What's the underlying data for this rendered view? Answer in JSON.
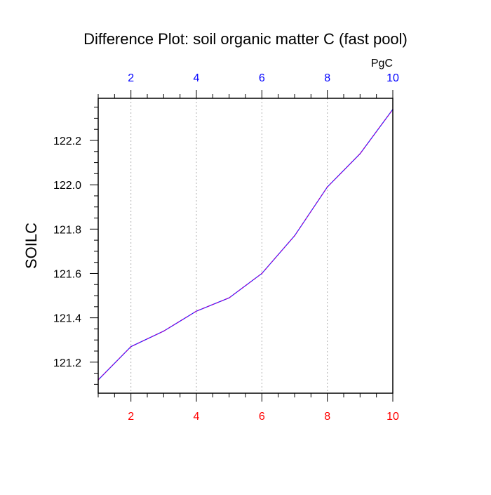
{
  "chart_data": {
    "type": "line",
    "title": "Difference Plot: soil organic matter C (fast pool)",
    "ylabel": "SOILC",
    "top_axis_unit": "PgC",
    "x": [
      1,
      2,
      3,
      4,
      5,
      6,
      7,
      8,
      9,
      10
    ],
    "series": [
      {
        "values": [
          121.12,
          121.27,
          121.34,
          121.43,
          121.49,
          121.6,
          121.77,
          121.99,
          122.14,
          122.34
        ],
        "color": "#a000c8",
        "dash_color": "#2020ff",
        "style": "dashed"
      }
    ],
    "xlim": [
      1,
      10
    ],
    "ylim": [
      121.06,
      122.39
    ],
    "x_ticks": [
      2,
      4,
      6,
      8,
      10
    ],
    "x_tick_labels": [
      "2",
      "4",
      "6",
      "8",
      "10"
    ],
    "y_ticks": [
      121.2,
      121.4,
      121.6,
      121.8,
      122.0,
      122.2
    ],
    "y_tick_labels": [
      "121.2",
      "121.4",
      "121.6",
      "121.8",
      "122.0",
      "122.2"
    ],
    "bottom_axis_color": "#ff0000",
    "top_axis_color": "#0000ff",
    "grid": "vertical-dotted",
    "legend": "none"
  }
}
